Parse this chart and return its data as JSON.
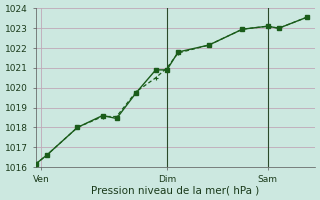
{
  "xlabel": "Pression niveau de la mer( hPa )",
  "bg_color": "#cce8e0",
  "plot_bg_color": "#cce8e0",
  "grid_color": "#c0a8b8",
  "line_color": "#1a5c1a",
  "xlim": [
    0,
    10.0
  ],
  "ylim": [
    1016,
    1024
  ],
  "yticks": [
    1016,
    1017,
    1018,
    1019,
    1020,
    1021,
    1022,
    1023,
    1024
  ],
  "xtick_positions": [
    0.2,
    4.7,
    8.3
  ],
  "xtick_labels": [
    "Ven",
    "Dim",
    "Sam"
  ],
  "vlines": [
    4.7,
    8.3
  ],
  "series1_x": [
    0.0,
    0.4,
    1.5,
    2.4,
    2.9,
    3.6,
    4.3,
    4.7,
    5.1,
    6.2,
    7.4,
    8.3,
    8.7,
    9.7
  ],
  "series1_y": [
    1016.15,
    1016.6,
    1018.0,
    1018.6,
    1018.45,
    1019.75,
    1020.9,
    1020.9,
    1021.8,
    1022.15,
    1022.95,
    1023.1,
    1023.0,
    1023.55
  ],
  "series2_x": [
    0.0,
    0.4,
    1.5,
    2.4,
    2.9,
    3.6,
    4.3,
    4.7,
    5.1,
    6.2,
    7.4,
    8.3,
    8.7,
    9.7
  ],
  "series2_y": [
    1016.15,
    1016.6,
    1018.0,
    1018.55,
    1018.55,
    1019.8,
    1020.5,
    1021.0,
    1021.75,
    1022.15,
    1022.95,
    1023.1,
    1023.0,
    1023.55
  ],
  "font_size_label": 7.5,
  "font_size_tick": 6.5
}
